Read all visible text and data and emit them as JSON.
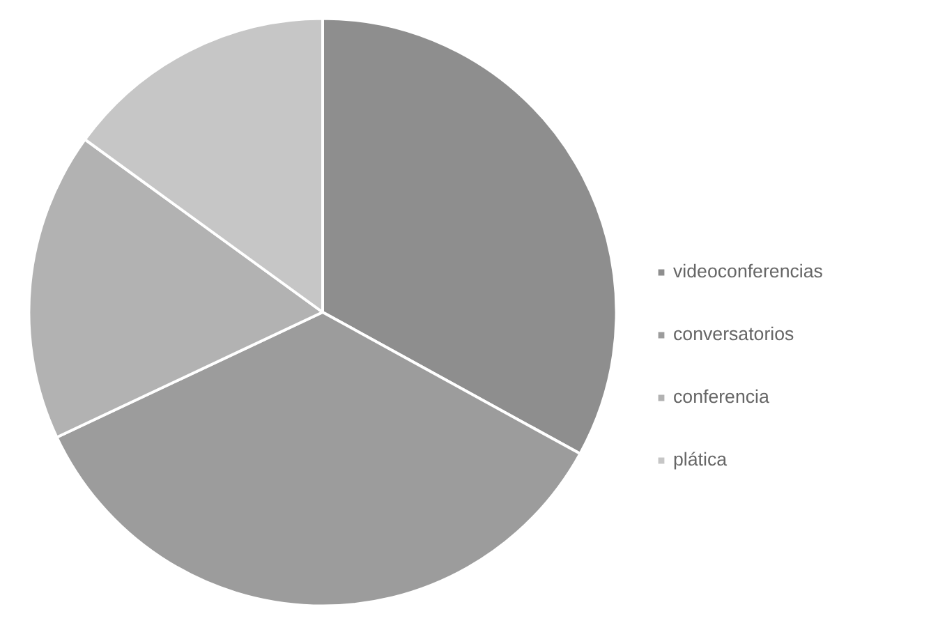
{
  "chart_data": {
    "type": "pie",
    "categories": [
      "videoconferencias",
      "conversatorios",
      "conferencia",
      "plática"
    ],
    "values": [
      33,
      35,
      17,
      15
    ],
    "colors": [
      "#8e8e8e",
      "#9c9c9c",
      "#b2b2b2",
      "#c6c6c6"
    ],
    "legend": "right"
  }
}
